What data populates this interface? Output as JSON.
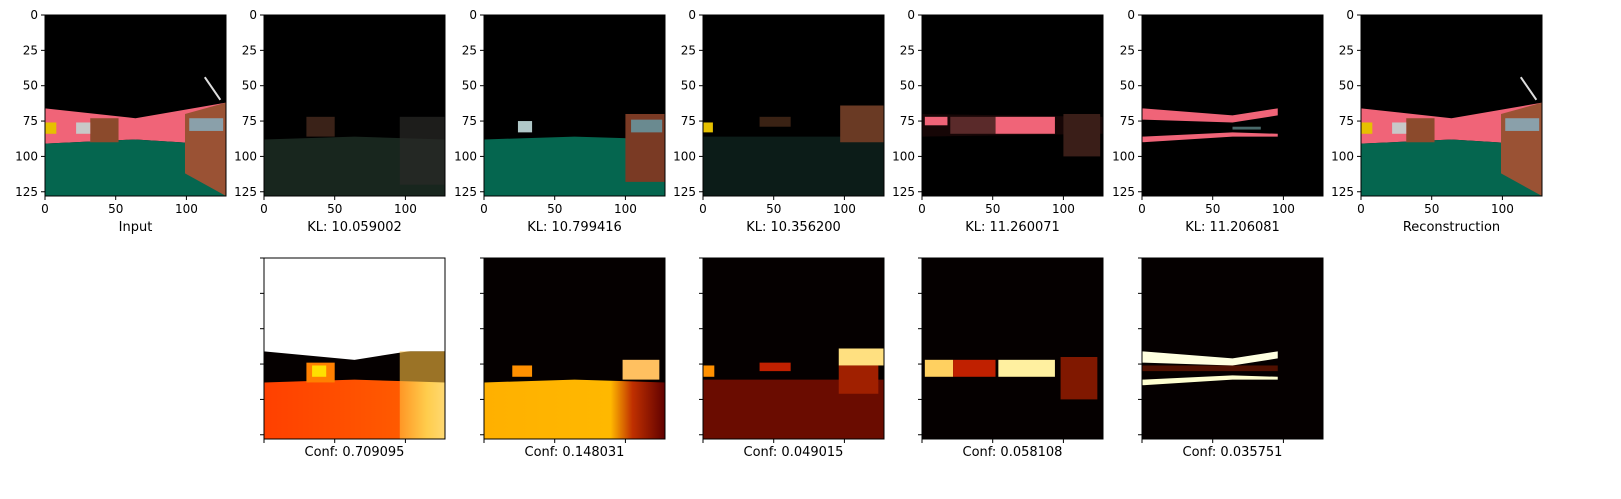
{
  "chart_data": {
    "type": "image-grid",
    "x_ticks": [
      "0",
      "50",
      "100"
    ],
    "y_ticks": [
      "0",
      "25",
      "50",
      "75",
      "100",
      "125"
    ],
    "xlim": [
      0,
      128
    ],
    "ylim": [
      128,
      0
    ],
    "top_row": [
      {
        "caption": "Input",
        "kind": "rgb"
      },
      {
        "caption": "KL: 10.059002",
        "kind": "latent-dim"
      },
      {
        "caption": "KL: 10.799416",
        "kind": "latent-teal"
      },
      {
        "caption": "KL: 10.356200",
        "kind": "latent-dark"
      },
      {
        "caption": "KL: 11.260071",
        "kind": "latent-pink"
      },
      {
        "caption": "KL: 11.206081",
        "kind": "latent-stripes"
      },
      {
        "caption": "Reconstruction",
        "kind": "rgb"
      }
    ],
    "bottom_row": [
      {
        "caption": "Conf: 0.709095",
        "colormap": "hot"
      },
      {
        "caption": "Conf: 0.148031",
        "colormap": "hot"
      },
      {
        "caption": "Conf: 0.049015",
        "colormap": "hot"
      },
      {
        "caption": "Conf: 0.058108",
        "colormap": "hot"
      },
      {
        "caption": "Conf: 0.035751",
        "colormap": "hot"
      }
    ],
    "colors": {
      "pink": "#f06478",
      "teal": "#05664f",
      "brown": "#8b4a2c",
      "yellow": "#e6c100",
      "black": "#000000"
    }
  }
}
